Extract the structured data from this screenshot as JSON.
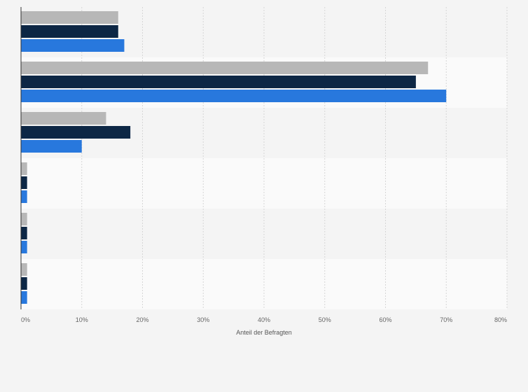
{
  "chart_data": {
    "type": "bar",
    "orientation": "horizontal",
    "title": "",
    "xlabel": "Anteil der Befragten",
    "ylabel": "",
    "xlim": [
      0,
      80
    ],
    "x_ticks": [
      "0%",
      "10%",
      "20%",
      "30%",
      "40%",
      "50%",
      "60%",
      "70%",
      "80%"
    ],
    "categories": [
      "",
      "",
      "",
      "",
      "",
      ""
    ],
    "series": [
      {
        "name": "",
        "color": "#b7b7b7",
        "values": [
          16,
          67,
          14,
          1,
          1,
          1
        ]
      },
      {
        "name": "",
        "color": "#0d2745",
        "values": [
          16,
          65,
          18,
          1,
          1,
          1
        ]
      },
      {
        "name": "",
        "color": "#2878dd",
        "values": [
          17,
          70,
          10,
          1,
          1,
          1
        ]
      }
    ],
    "grid": true,
    "band_colors": [
      "#f4f4f4",
      "#fafafa"
    ]
  }
}
